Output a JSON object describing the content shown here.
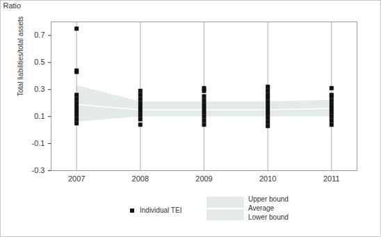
{
  "chart_data": {
    "type": "scatter",
    "y_unit": "Ratio",
    "y_label": "Total liabilities/total assets",
    "xlim": [
      2006.6,
      2011.4
    ],
    "xticks": [
      2007,
      2008,
      2009,
      2010,
      2011
    ],
    "ylim": [
      -0.3,
      0.8
    ],
    "yticks": [
      -0.3,
      -0.1,
      0.1,
      0.3,
      0.5,
      0.7
    ],
    "grid": true,
    "series": [
      {
        "name": "Upper bound",
        "type": "band",
        "color": "#e4eae8",
        "x": [
          2007,
          2008,
          2009,
          2010,
          2011
        ],
        "values": [
          0.33,
          0.21,
          0.21,
          0.21,
          0.22
        ]
      },
      {
        "name": "Average",
        "type": "line",
        "color": "#ffffff",
        "x": [
          2007,
          2008,
          2009,
          2010,
          2011
        ],
        "values": [
          0.19,
          0.15,
          0.15,
          0.15,
          0.16
        ]
      },
      {
        "name": "Lower bound",
        "type": "band",
        "color": "#e4eae8",
        "x": [
          2007,
          2008,
          2009,
          2010,
          2011
        ],
        "values": [
          0.06,
          0.1,
          0.1,
          0.1,
          0.1
        ]
      },
      {
        "name": "Individual TEI",
        "type": "scatter",
        "marker": "square",
        "color": "#111111",
        "x": [
          2007,
          2007,
          2007,
          2007,
          2007,
          2007,
          2007,
          2007,
          2007,
          2007,
          2007,
          2008,
          2008,
          2008,
          2008,
          2008,
          2008,
          2008,
          2008,
          2008,
          2009,
          2009,
          2009,
          2009,
          2009,
          2009,
          2009,
          2009,
          2009,
          2009,
          2010,
          2010,
          2010,
          2010,
          2010,
          2010,
          2010,
          2010,
          2010,
          2010,
          2010,
          2011,
          2011,
          2011,
          2011,
          2011,
          2011,
          2011,
          2011,
          2011,
          2011
        ],
        "values": [
          0.05,
          0.08,
          0.11,
          0.14,
          0.17,
          0.2,
          0.23,
          0.26,
          0.43,
          0.44,
          0.75,
          0.04,
          0.08,
          0.11,
          0.14,
          0.17,
          0.2,
          0.23,
          0.26,
          0.29,
          0.04,
          0.07,
          0.1,
          0.13,
          0.16,
          0.19,
          0.22,
          0.25,
          0.29,
          0.31,
          0.03,
          0.06,
          0.09,
          0.12,
          0.15,
          0.18,
          0.21,
          0.24,
          0.26,
          0.29,
          0.32,
          0.04,
          0.07,
          0.1,
          0.13,
          0.16,
          0.19,
          0.22,
          0.25,
          0.26,
          0.31
        ]
      }
    ]
  }
}
